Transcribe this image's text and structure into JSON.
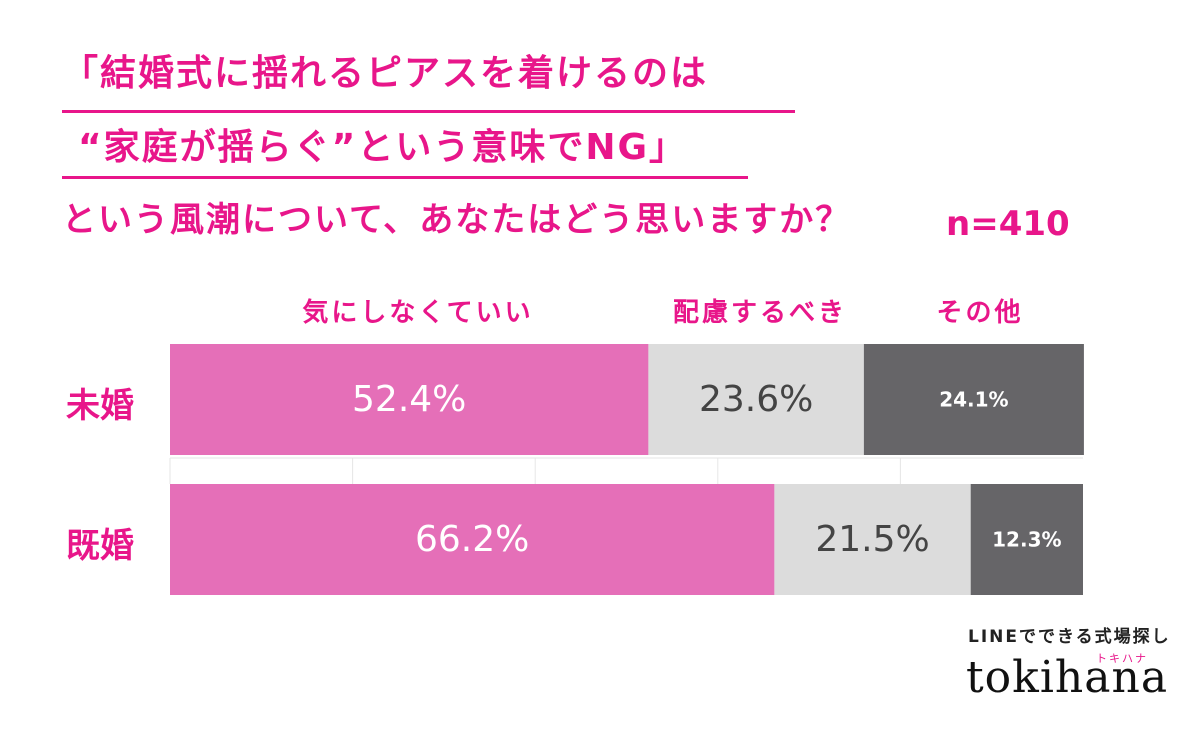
{
  "title": {
    "line1": "「結婚式に揺れるピアスを着けるのは",
    "line2": "“家庭が揺らぐ”という意味でNG」",
    "line3": "という風潮について、あなたはどう思いますか？"
  },
  "sample_size": "n=410",
  "brand": {
    "tagline": "LINEでできる式場探し",
    "kana": "トキハナ",
    "name": "tokihana"
  },
  "colors": {
    "accent": "#e8168a",
    "series1": "#e56fb8",
    "series2": "#dcdcdc",
    "series3": "#666568"
  },
  "chart_data": {
    "type": "bar",
    "orientation": "horizontal",
    "stacked": true,
    "categories": [
      "未婚",
      "既婚"
    ],
    "series": [
      {
        "name": "気にしなくていい",
        "values": [
          52.4,
          66.2
        ],
        "labels": [
          "52.4%",
          "66.2%"
        ]
      },
      {
        "name": "配慮するべき",
        "values": [
          23.6,
          21.5
        ],
        "labels": [
          "23.6%",
          "21.5%"
        ]
      },
      {
        "name": "その他",
        "values": [
          24.1,
          12.3
        ],
        "labels": [
          "24.1%",
          "12.3%"
        ]
      }
    ],
    "xlim": [
      0,
      100
    ]
  }
}
